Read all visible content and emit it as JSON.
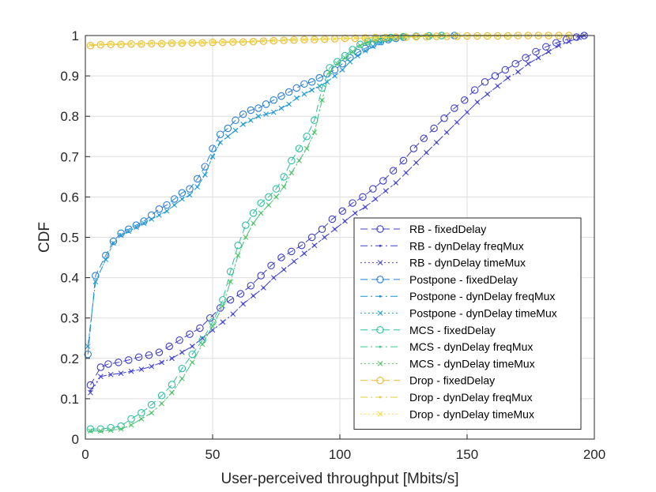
{
  "chart_data": {
    "type": "line",
    "title": "",
    "xlabel": "User-perceived throughput [Mbits/s]",
    "ylabel": "CDF",
    "xlim": [
      0,
      200
    ],
    "ylim": [
      0,
      1
    ],
    "xticks": [
      0,
      50,
      100,
      150,
      200
    ],
    "yticks": [
      0,
      0.1,
      0.2,
      0.3,
      0.4,
      0.5,
      0.6,
      0.7,
      0.8,
      0.9,
      1
    ],
    "grid": true,
    "legend_position": "bottom-right",
    "series": [
      {
        "name": "RB - fixedDelay",
        "color": "#3f3fc8",
        "dash": "dash",
        "marker": "circle",
        "x": [
          2,
          6,
          9,
          13,
          17,
          21,
          25,
          29,
          33,
          37,
          41,
          45,
          49,
          53,
          57,
          61,
          65,
          69,
          73,
          77,
          81,
          85,
          89,
          93,
          97,
          101,
          105,
          109,
          113,
          117,
          121,
          125,
          129,
          133,
          137,
          141,
          145,
          149,
          153,
          157,
          161,
          165,
          169,
          173,
          177,
          181,
          185,
          189,
          193,
          196
        ],
        "y": [
          0.134,
          0.178,
          0.186,
          0.19,
          0.196,
          0.203,
          0.208,
          0.215,
          0.23,
          0.245,
          0.26,
          0.275,
          0.3,
          0.325,
          0.345,
          0.36,
          0.38,
          0.405,
          0.43,
          0.45,
          0.465,
          0.48,
          0.5,
          0.52,
          0.545,
          0.565,
          0.585,
          0.6,
          0.62,
          0.64,
          0.665,
          0.69,
          0.72,
          0.745,
          0.77,
          0.795,
          0.82,
          0.84,
          0.865,
          0.885,
          0.9,
          0.915,
          0.93,
          0.945,
          0.96,
          0.972,
          0.982,
          0.99,
          0.996,
          1.0
        ]
      },
      {
        "name": "RB - dynDelay freqMux",
        "color": "#3f3fc8",
        "dash": "dashdot",
        "marker": "point",
        "x": [
          2,
          6,
          10,
          14,
          18,
          22,
          26,
          30,
          34,
          38,
          42,
          46,
          50,
          54,
          58,
          62,
          66,
          70,
          74,
          78,
          82,
          86,
          90,
          94,
          98,
          102,
          106,
          110,
          114,
          118,
          122,
          126,
          130,
          134,
          138,
          142,
          146,
          150,
          154,
          158,
          162,
          166,
          170,
          174,
          178,
          182,
          186,
          190,
          194,
          196
        ],
        "y": [
          0.12,
          0.155,
          0.16,
          0.163,
          0.168,
          0.173,
          0.18,
          0.19,
          0.2,
          0.215,
          0.23,
          0.25,
          0.27,
          0.29,
          0.31,
          0.335,
          0.355,
          0.375,
          0.4,
          0.42,
          0.44,
          0.46,
          0.48,
          0.5,
          0.52,
          0.54,
          0.56,
          0.575,
          0.595,
          0.615,
          0.635,
          0.66,
          0.685,
          0.71,
          0.735,
          0.76,
          0.785,
          0.81,
          0.835,
          0.855,
          0.875,
          0.895,
          0.91,
          0.93,
          0.945,
          0.96,
          0.975,
          0.985,
          0.995,
          1.0
        ]
      },
      {
        "name": "RB - dynDelay timeMux",
        "color": "#4a4ad8",
        "dash": "dot",
        "marker": "x",
        "x": [
          2,
          6,
          10,
          14,
          18,
          22,
          26,
          30,
          34,
          38,
          42,
          46,
          50,
          54,
          58,
          62,
          66,
          70,
          74,
          78,
          82,
          86,
          90,
          94,
          98,
          102,
          106,
          110,
          114,
          118,
          122,
          126,
          130,
          134,
          138,
          142,
          146,
          150,
          154,
          158,
          162,
          166,
          170,
          174,
          178,
          182,
          186,
          190,
          194,
          196
        ],
        "y": [
          0.115,
          0.155,
          0.16,
          0.163,
          0.168,
          0.173,
          0.18,
          0.19,
          0.2,
          0.215,
          0.23,
          0.25,
          0.27,
          0.29,
          0.31,
          0.335,
          0.355,
          0.375,
          0.4,
          0.42,
          0.44,
          0.46,
          0.48,
          0.5,
          0.52,
          0.54,
          0.56,
          0.575,
          0.595,
          0.615,
          0.635,
          0.66,
          0.685,
          0.71,
          0.735,
          0.76,
          0.785,
          0.81,
          0.835,
          0.855,
          0.875,
          0.895,
          0.91,
          0.93,
          0.945,
          0.96,
          0.975,
          0.985,
          0.995,
          1.0
        ]
      },
      {
        "name": "Postpone - fixedDelay",
        "color": "#2b7fd8",
        "dash": "dash",
        "marker": "circle",
        "x": [
          1,
          4,
          8,
          11,
          14,
          17,
          20,
          23,
          26,
          29,
          32,
          35,
          38,
          41,
          44,
          47,
          50,
          53,
          56,
          59,
          62,
          65,
          68,
          71,
          74,
          77,
          80,
          83,
          86,
          89,
          92,
          95,
          98,
          101,
          104,
          107,
          110,
          113,
          116,
          119,
          122,
          125,
          130,
          135,
          140,
          145
        ],
        "y": [
          0.21,
          0.405,
          0.455,
          0.49,
          0.51,
          0.52,
          0.53,
          0.54,
          0.555,
          0.57,
          0.58,
          0.595,
          0.61,
          0.62,
          0.645,
          0.675,
          0.72,
          0.755,
          0.77,
          0.79,
          0.805,
          0.815,
          0.82,
          0.83,
          0.84,
          0.85,
          0.86,
          0.87,
          0.88,
          0.885,
          0.895,
          0.905,
          0.915,
          0.93,
          0.945,
          0.958,
          0.968,
          0.978,
          0.985,
          0.99,
          0.993,
          0.996,
          0.998,
          0.999,
          1.0,
          1.0
        ]
      },
      {
        "name": "Postpone - dynDelay freqMux",
        "color": "#1f8ed0",
        "dash": "dashdot",
        "marker": "point",
        "x": [
          1,
          4,
          8,
          11,
          14,
          17,
          20,
          23,
          26,
          29,
          32,
          35,
          38,
          41,
          44,
          47,
          50,
          53,
          56,
          59,
          62,
          65,
          68,
          71,
          74,
          77,
          80,
          83,
          86,
          89,
          92,
          95,
          98,
          101,
          104,
          107,
          110,
          113,
          116,
          119,
          122,
          125,
          130,
          135,
          140,
          145
        ],
        "y": [
          0.23,
          0.39,
          0.445,
          0.485,
          0.505,
          0.515,
          0.525,
          0.535,
          0.545,
          0.555,
          0.565,
          0.58,
          0.595,
          0.605,
          0.625,
          0.655,
          0.7,
          0.735,
          0.75,
          0.765,
          0.78,
          0.79,
          0.8,
          0.805,
          0.81,
          0.82,
          0.83,
          0.845,
          0.855,
          0.865,
          0.875,
          0.885,
          0.9,
          0.915,
          0.935,
          0.95,
          0.962,
          0.973,
          0.982,
          0.988,
          0.992,
          0.995,
          0.997,
          0.999,
          1.0,
          1.0
        ]
      },
      {
        "name": "Postpone - dynDelay timeMux",
        "color": "#2aa0d8",
        "dash": "dot",
        "marker": "x",
        "x": [
          1,
          4,
          8,
          11,
          14,
          17,
          20,
          23,
          26,
          29,
          32,
          35,
          38,
          41,
          44,
          47,
          50,
          53,
          56,
          59,
          62,
          65,
          68,
          71,
          74,
          77,
          80,
          83,
          86,
          89,
          92,
          95,
          98,
          101,
          104,
          107,
          110,
          113,
          116,
          119,
          122,
          125,
          130,
          135,
          140,
          145
        ],
        "y": [
          0.23,
          0.39,
          0.445,
          0.485,
          0.505,
          0.515,
          0.525,
          0.535,
          0.545,
          0.555,
          0.565,
          0.58,
          0.595,
          0.605,
          0.625,
          0.655,
          0.7,
          0.735,
          0.75,
          0.765,
          0.78,
          0.79,
          0.8,
          0.805,
          0.81,
          0.82,
          0.83,
          0.845,
          0.855,
          0.865,
          0.875,
          0.885,
          0.9,
          0.915,
          0.935,
          0.95,
          0.962,
          0.973,
          0.982,
          0.988,
          0.992,
          0.995,
          0.997,
          0.999,
          1.0,
          1.0
        ]
      },
      {
        "name": "MCS - fixedDelay",
        "color": "#2fc0a0",
        "dash": "dash",
        "marker": "circle",
        "x": [
          2,
          6,
          10,
          14,
          18,
          22,
          26,
          30,
          34,
          38,
          42,
          46,
          50,
          54,
          57,
          60,
          63,
          66,
          69,
          72,
          75,
          78,
          81,
          84,
          87,
          90,
          93,
          96,
          99,
          102,
          105,
          108,
          111,
          114,
          117,
          120,
          125,
          130,
          135,
          140
        ],
        "y": [
          0.025,
          0.025,
          0.028,
          0.032,
          0.05,
          0.065,
          0.085,
          0.108,
          0.135,
          0.175,
          0.21,
          0.245,
          0.29,
          0.345,
          0.415,
          0.48,
          0.53,
          0.56,
          0.585,
          0.6,
          0.62,
          0.65,
          0.69,
          0.72,
          0.75,
          0.79,
          0.87,
          0.92,
          0.935,
          0.95,
          0.965,
          0.978,
          0.985,
          0.99,
          0.993,
          0.995,
          0.997,
          0.998,
          0.999,
          1.0
        ]
      },
      {
        "name": "MCS - dynDelay freqMux",
        "color": "#3dc38a",
        "dash": "dashdot",
        "marker": "point",
        "x": [
          2,
          6,
          10,
          14,
          18,
          22,
          26,
          30,
          34,
          38,
          42,
          46,
          50,
          54,
          57,
          60,
          63,
          66,
          69,
          72,
          75,
          78,
          81,
          84,
          87,
          90,
          93,
          96,
          99,
          102,
          105,
          108,
          111,
          114,
          117,
          120,
          125,
          130,
          135,
          140
        ],
        "y": [
          0.02,
          0.02,
          0.022,
          0.025,
          0.035,
          0.05,
          0.065,
          0.088,
          0.115,
          0.15,
          0.19,
          0.235,
          0.28,
          0.33,
          0.39,
          0.455,
          0.5,
          0.535,
          0.56,
          0.58,
          0.6,
          0.625,
          0.66,
          0.69,
          0.72,
          0.76,
          0.84,
          0.91,
          0.93,
          0.945,
          0.96,
          0.975,
          0.983,
          0.988,
          0.992,
          0.995,
          0.997,
          0.998,
          0.999,
          1.0
        ]
      },
      {
        "name": "MCS - dynDelay timeMux",
        "color": "#5ac46a",
        "dash": "dot",
        "marker": "x",
        "x": [
          2,
          6,
          10,
          14,
          18,
          22,
          26,
          30,
          34,
          38,
          42,
          46,
          50,
          54,
          57,
          60,
          63,
          66,
          69,
          72,
          75,
          78,
          81,
          84,
          87,
          90,
          93,
          96,
          99,
          102,
          105,
          108,
          111,
          114,
          117,
          120,
          125,
          130,
          135,
          140
        ],
        "y": [
          0.02,
          0.02,
          0.022,
          0.025,
          0.035,
          0.05,
          0.065,
          0.088,
          0.115,
          0.15,
          0.19,
          0.235,
          0.28,
          0.33,
          0.39,
          0.455,
          0.5,
          0.535,
          0.56,
          0.58,
          0.6,
          0.625,
          0.66,
          0.69,
          0.72,
          0.76,
          0.84,
          0.91,
          0.93,
          0.945,
          0.96,
          0.975,
          0.983,
          0.988,
          0.992,
          0.995,
          0.997,
          0.998,
          0.999,
          1.0
        ]
      },
      {
        "name": "Drop - fixedDelay",
        "color": "#e8b83a",
        "dash": "dash",
        "marker": "circle",
        "x": [
          2,
          6,
          10,
          14,
          18,
          22,
          26,
          30,
          34,
          38,
          42,
          46,
          50,
          54,
          58,
          62,
          66,
          70,
          74,
          78,
          82,
          86,
          90,
          94,
          98,
          102,
          106,
          110,
          114,
          118,
          122,
          126,
          130,
          134,
          138,
          142,
          146,
          150,
          154,
          158,
          162,
          166,
          170,
          174,
          178,
          182,
          186,
          190
        ],
        "y": [
          0.975,
          0.977,
          0.978,
          0.978,
          0.979,
          0.979,
          0.98,
          0.98,
          0.981,
          0.981,
          0.982,
          0.982,
          0.983,
          0.983,
          0.984,
          0.984,
          0.985,
          0.986,
          0.987,
          0.988,
          0.989,
          0.99,
          0.99,
          0.991,
          0.992,
          0.993,
          0.993,
          0.994,
          0.995,
          0.995,
          0.996,
          0.996,
          0.997,
          0.997,
          0.998,
          0.998,
          0.998,
          0.999,
          0.999,
          0.999,
          0.999,
          0.999,
          1.0,
          1.0,
          1.0,
          1.0,
          1.0,
          1.0
        ]
      },
      {
        "name": "Drop - dynDelay freqMux",
        "color": "#e8c93f",
        "dash": "dashdot",
        "marker": "point",
        "x": [
          2,
          6,
          10,
          14,
          18,
          22,
          26,
          30,
          34,
          38,
          42,
          46,
          50,
          54,
          58,
          62,
          66,
          70,
          74,
          78,
          82,
          86,
          90,
          94,
          98,
          102,
          106,
          110,
          114,
          118,
          122,
          126,
          130,
          134,
          138,
          142,
          146,
          150,
          154,
          158,
          162,
          166,
          170,
          174,
          178,
          182,
          186,
          190
        ],
        "y": [
          0.977,
          0.978,
          0.979,
          0.979,
          0.98,
          0.98,
          0.981,
          0.981,
          0.982,
          0.982,
          0.983,
          0.983,
          0.984,
          0.984,
          0.985,
          0.985,
          0.986,
          0.987,
          0.988,
          0.989,
          0.99,
          0.99,
          0.991,
          0.992,
          0.992,
          0.993,
          0.994,
          0.994,
          0.995,
          0.995,
          0.996,
          0.996,
          0.997,
          0.997,
          0.998,
          0.998,
          0.998,
          0.999,
          0.999,
          0.999,
          0.999,
          0.999,
          1.0,
          1.0,
          1.0,
          1.0,
          1.0,
          1.0
        ]
      },
      {
        "name": "Drop - dynDelay timeMux",
        "color": "#f2dc4a",
        "dash": "dot",
        "marker": "x",
        "x": [
          2,
          6,
          10,
          14,
          18,
          22,
          26,
          30,
          34,
          38,
          42,
          46,
          50,
          54,
          58,
          62,
          66,
          70,
          74,
          78,
          82,
          86,
          90,
          94,
          98,
          102,
          106,
          110,
          114,
          118,
          122,
          126,
          130,
          134,
          138,
          142,
          146,
          150,
          154,
          158,
          162,
          166,
          170,
          174,
          178,
          182,
          186,
          190
        ],
        "y": [
          0.977,
          0.978,
          0.979,
          0.979,
          0.98,
          0.98,
          0.981,
          0.981,
          0.982,
          0.982,
          0.983,
          0.983,
          0.984,
          0.984,
          0.985,
          0.985,
          0.986,
          0.987,
          0.988,
          0.989,
          0.99,
          0.99,
          0.991,
          0.992,
          0.992,
          0.993,
          0.994,
          0.994,
          0.995,
          0.995,
          0.996,
          0.996,
          0.997,
          0.997,
          0.998,
          0.998,
          0.998,
          0.999,
          0.999,
          0.999,
          0.999,
          0.999,
          1.0,
          1.0,
          1.0,
          1.0,
          1.0,
          1.0
        ]
      }
    ]
  }
}
